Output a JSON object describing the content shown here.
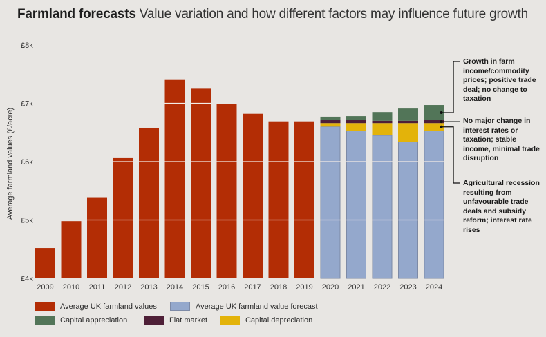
{
  "title": {
    "bold": "Farmland forecasts",
    "rest": "Value variation and how different factors may influence future growth"
  },
  "colors": {
    "historic": "#b32d05",
    "forecast": "#94a8cc",
    "forecast_border": "#7d8aa6",
    "appreciation": "#527558",
    "flat": "#4e1f37",
    "depreciation": "#e3b30a",
    "background": "#e8e6e3"
  },
  "annotations": [
    {
      "key": "appreciation",
      "text": "Growth in farm income/commodity prices; positive trade deal; no change to taxation"
    },
    {
      "key": "flat",
      "text": "No major change in interest rates or taxation; stable income, minimal trade disruption"
    },
    {
      "key": "depreciation",
      "text": "Agricultural recession resulting from unfavourable trade deals and subsidy reform; interest rate rises"
    }
  ],
  "legend": [
    {
      "key": "historic",
      "label": "Average UK farmland values"
    },
    {
      "key": "forecast",
      "label": "Average UK farmland value forecast"
    },
    {
      "key": "appreciation",
      "label": "Capital appreciation"
    },
    {
      "key": "flat",
      "label": "Flat market"
    },
    {
      "key": "depreciation",
      "label": "Capital depreciation"
    }
  ],
  "chart_data": {
    "type": "bar",
    "title": "Farmland forecasts",
    "subtitle": "Value variation and how different factors may influence future growth",
    "xlabel": "",
    "ylabel": "Average farmland values (£/acre)",
    "ylim": [
      4000,
      8000
    ],
    "yticks": [
      4000,
      5000,
      6000,
      7000,
      8000
    ],
    "ytick_labels": [
      "£4k",
      "£5k",
      "£6k",
      "£7k",
      "£8k"
    ],
    "grid": "white lines drawn across bars only",
    "categories": [
      "2009",
      "2010",
      "2011",
      "2012",
      "2013",
      "2014",
      "2015",
      "2016",
      "2017",
      "2018",
      "2019",
      "2020",
      "2021",
      "2022",
      "2023",
      "2024"
    ],
    "series": [
      {
        "name": "Average UK farmland values",
        "key": "historic",
        "values": [
          4520,
          4980,
          5390,
          6060,
          6580,
          7400,
          7250,
          6990,
          6820,
          6690,
          6690,
          null,
          null,
          null,
          null,
          null
        ]
      },
      {
        "name": "Average UK farmland value forecast",
        "key": "forecast",
        "values": [
          null,
          null,
          null,
          null,
          null,
          null,
          null,
          null,
          null,
          null,
          null,
          6600,
          6530,
          6450,
          6340,
          6530
        ]
      },
      {
        "name": "Capital depreciation",
        "key": "depreciation",
        "stacked_segment": true,
        "values": [
          null,
          null,
          null,
          null,
          null,
          null,
          null,
          null,
          null,
          null,
          null,
          60,
          130,
          210,
          320,
          130
        ]
      },
      {
        "name": "Flat market",
        "key": "flat",
        "stacked_segment": true,
        "values": [
          null,
          null,
          null,
          null,
          null,
          null,
          null,
          null,
          null,
          null,
          null,
          50,
          50,
          40,
          40,
          50
        ]
      },
      {
        "name": "Capital appreciation",
        "key": "appreciation",
        "stacked_segment": true,
        "values": [
          null,
          null,
          null,
          null,
          null,
          null,
          null,
          null,
          null,
          null,
          null,
          60,
          70,
          150,
          210,
          260
        ]
      }
    ],
    "legend_position": "bottom-left"
  }
}
